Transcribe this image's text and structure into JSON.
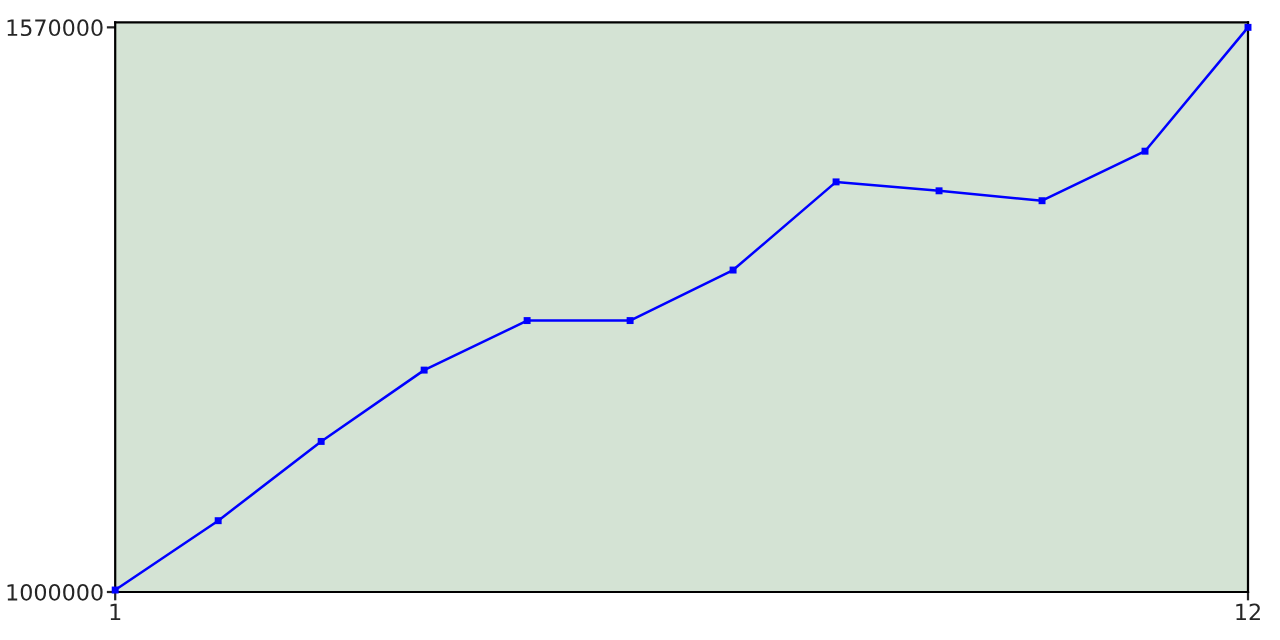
{
  "chart_data": {
    "type": "line",
    "x": [
      1,
      2,
      3,
      4,
      5,
      6,
      7,
      8,
      9,
      10,
      11,
      12
    ],
    "series": [
      {
        "color": "#0000ff",
        "values": [
          1002000,
          1072000,
          1152000,
          1224000,
          1274000,
          1274000,
          1325000,
          1414000,
          1405000,
          1395000,
          1445000,
          1570000
        ]
      }
    ],
    "xlim": [
      1,
      12
    ],
    "xticks": [
      1,
      12
    ],
    "ylim": [
      1000000,
      1575000
    ],
    "yticks": [
      1000000,
      1570000
    ],
    "marker": "square",
    "line_style": "solid",
    "grid": false,
    "legend": false
  }
}
